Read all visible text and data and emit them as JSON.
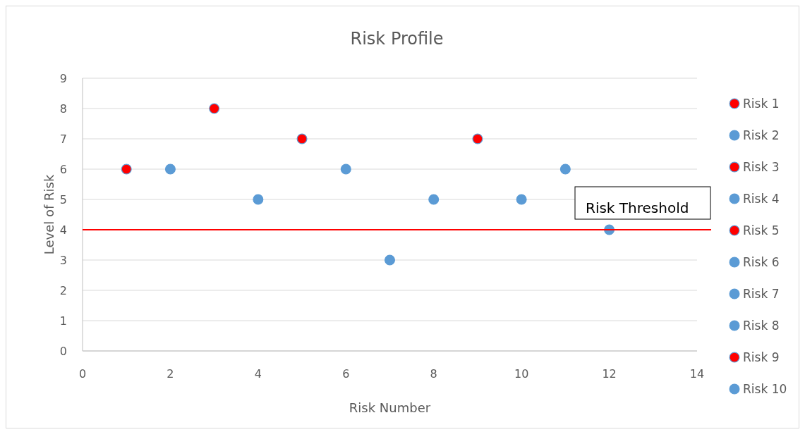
{
  "chart_data": {
    "type": "scatter",
    "title": "Risk Profile",
    "xlabel": "Risk Number",
    "ylabel": "Level of Risk",
    "xlim": [
      0,
      14
    ],
    "xticks": [
      0,
      2,
      4,
      6,
      8,
      10,
      12,
      14
    ],
    "ylim": [
      0,
      9
    ],
    "yticks": [
      0,
      1,
      2,
      3,
      4,
      5,
      6,
      7,
      8,
      9
    ],
    "grid": "y",
    "legend": "right",
    "marker": "circle",
    "ref_lines": [
      {
        "axis": "y",
        "value": 4,
        "label": "Risk Threshold",
        "color": "#ff0000"
      }
    ],
    "series": [
      {
        "name": "Risk 1",
        "color": "#ff0000",
        "x": [
          1
        ],
        "values": [
          6
        ]
      },
      {
        "name": "Risk 2",
        "color": "#5b9bd5",
        "x": [
          2
        ],
        "values": [
          6
        ]
      },
      {
        "name": "Risk 3",
        "color": "#ff0000",
        "x": [
          3
        ],
        "values": [
          8
        ]
      },
      {
        "name": "Risk 4",
        "color": "#5b9bd5",
        "x": [
          4
        ],
        "values": [
          5
        ]
      },
      {
        "name": "Risk 5",
        "color": "#ff0000",
        "x": [
          5
        ],
        "values": [
          7
        ]
      },
      {
        "name": "Risk 6",
        "color": "#5b9bd5",
        "x": [
          6
        ],
        "values": [
          6
        ]
      },
      {
        "name": "Risk 7",
        "color": "#5b9bd5",
        "x": [
          7
        ],
        "values": [
          3
        ]
      },
      {
        "name": "Risk 8",
        "color": "#5b9bd5",
        "x": [
          8
        ],
        "values": [
          5
        ]
      },
      {
        "name": "Risk 9",
        "color": "#ff0000",
        "x": [
          9
        ],
        "values": [
          7
        ]
      },
      {
        "name": "Risk 10",
        "color": "#5b9bd5",
        "x": [
          10
        ],
        "values": [
          5
        ]
      },
      {
        "color": "#5b9bd5",
        "x": [
          11
        ],
        "values": [
          6
        ]
      },
      {
        "color": "#5b9bd5",
        "x": [
          12
        ],
        "values": [
          4
        ]
      }
    ]
  }
}
